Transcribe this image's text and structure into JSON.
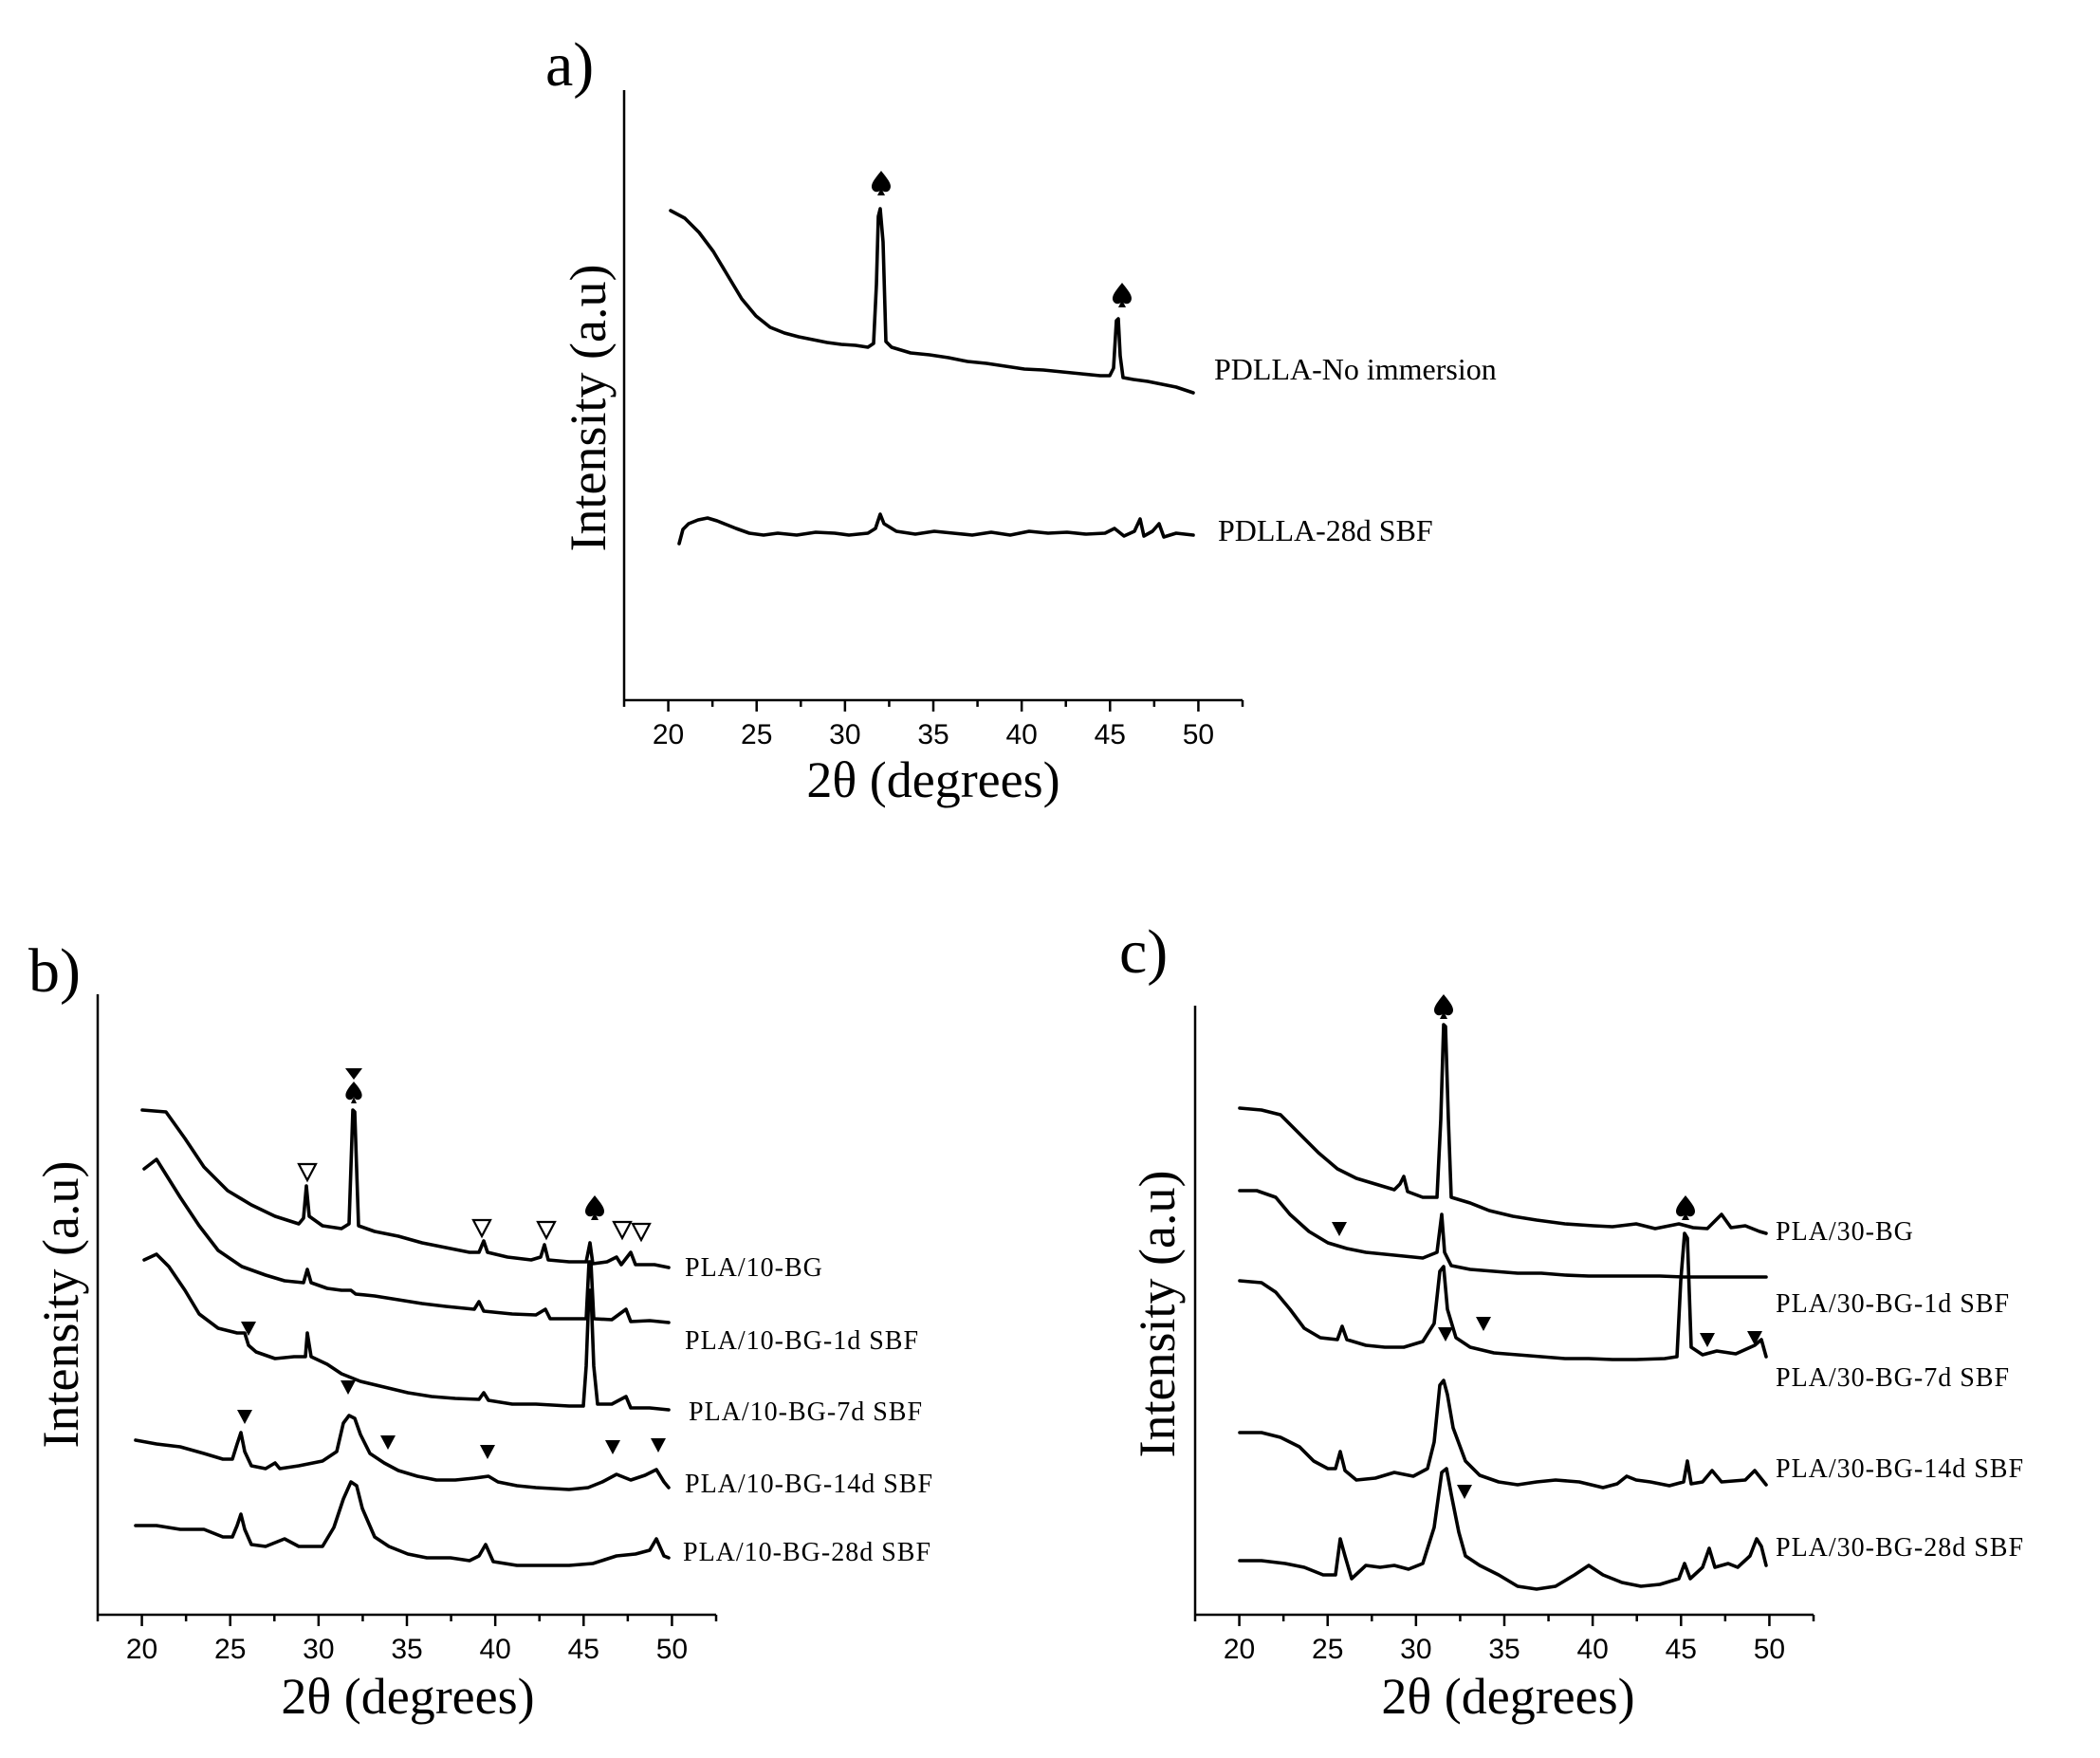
{
  "figure": {
    "x_axis_label": "2θ (degrees)",
    "y_axis_label": "Intensity (a.u)",
    "marker_colors": {
      "filled": "#000000",
      "open": "#ffffff"
    }
  },
  "chart_data": [
    {
      "type": "line",
      "panel": "a)",
      "xlabel": "2θ (degrees)",
      "ylabel": "Intensity (a.u)",
      "xlim": [
        17.5,
        52.5
      ],
      "xticks": [
        20,
        25,
        30,
        35,
        40,
        45,
        50
      ],
      "y_units": "arbitrary (curves stacked with vertical offsets)",
      "series": [
        {
          "name": "PDLLA-No immersion",
          "x_range": [
            20.3,
            49.8
          ],
          "peaks": [
            {
              "x": 31.8,
              "marker": "spade"
            },
            {
              "x": 45.3,
              "marker": "spade"
            }
          ]
        },
        {
          "name": "PDLLA-28d SBF",
          "x_range": [
            20.5,
            49.5
          ],
          "peaks": []
        }
      ]
    },
    {
      "type": "line",
      "panel": "b)",
      "xlabel": "2θ (degrees)",
      "ylabel": "Intensity (a.u)",
      "xlim": [
        17.5,
        52.5
      ],
      "xticks": [
        20,
        25,
        30,
        35,
        40,
        45,
        50
      ],
      "y_units": "arbitrary (curves stacked with vertical offsets)",
      "series": [
        {
          "name": "PLA/10-BG",
          "x_range": [
            20,
            49.5
          ],
          "peaks": [
            {
              "x": 31.8,
              "marker": "hourglass"
            },
            {
              "x": 29.2,
              "marker": "open-triangle"
            },
            {
              "x": 39.2,
              "marker": "open-triangle"
            },
            {
              "x": 42.9,
              "marker": "open-triangle"
            },
            {
              "x": 45.3,
              "marker": "spade"
            },
            {
              "x": 47.3,
              "marker": "open-triangle"
            },
            {
              "x": 48.3,
              "marker": "open-triangle"
            }
          ]
        },
        {
          "name": "PLA/10-BG-1d SBF",
          "x_range": [
            20.3,
            49.5
          ],
          "peaks": []
        },
        {
          "name": "PLA/10-BG-7d SBF",
          "x_range": [
            20,
            49.5
          ],
          "peaks": [
            {
              "x": 25.9,
              "marker": "filled-triangle"
            }
          ]
        },
        {
          "name": "PLA/10-BG-14d SBF",
          "x_range": [
            19.8,
            49.5
          ],
          "peaks": [
            {
              "x": 25.8,
              "marker": "filled-triangle"
            },
            {
              "x": 31.8,
              "marker": "filled-triangle"
            },
            {
              "x": 34.0,
              "marker": "filled-triangle"
            },
            {
              "x": 39.4,
              "marker": "filled-triangle"
            },
            {
              "x": 46.8,
              "marker": "filled-triangle"
            },
            {
              "x": 49.3,
              "marker": "filled-triangle"
            }
          ]
        },
        {
          "name": "PLA/10-BG-28d SBF",
          "x_range": [
            19.8,
            49.5
          ],
          "peaks": []
        }
      ]
    },
    {
      "type": "line",
      "panel": "c)",
      "xlabel": "2θ (degrees)",
      "ylabel": "Intensity (a.u)",
      "xlim": [
        17.5,
        52.5
      ],
      "xticks": [
        20,
        25,
        30,
        35,
        40,
        45,
        50
      ],
      "y_units": "arbitrary (curves stacked with vertical offsets)",
      "series": [
        {
          "name": "PLA/30-BG",
          "x_range": [
            20,
            49.5
          ],
          "peaks": [
            {
              "x": 31.8,
              "marker": "spade"
            },
            {
              "x": 45.3,
              "marker": "spade"
            }
          ]
        },
        {
          "name": "PLA/30-BG-1d SBF",
          "x_range": [
            20,
            49.5
          ],
          "peaks": [
            {
              "x": 25.9,
              "marker": "filled-triangle"
            }
          ]
        },
        {
          "name": "PLA/30-BG-7d SBF",
          "x_range": [
            20,
            49.5
          ],
          "peaks": [
            {
              "x": 31.8,
              "marker": "filled-triangle"
            },
            {
              "x": 34.2,
              "marker": "filled-triangle"
            },
            {
              "x": 46.6,
              "marker": "filled-triangle"
            },
            {
              "x": 49.4,
              "marker": "filled-triangle"
            }
          ]
        },
        {
          "name": "PLA/30-BG-14d SBF",
          "x_range": [
            20,
            49.5
          ],
          "peaks": []
        },
        {
          "name": "PLA/30-BG-28d SBF",
          "x_range": [
            20,
            49.5
          ],
          "peaks": [
            {
              "x": 32.8,
              "marker": "filled-triangle"
            }
          ]
        }
      ]
    }
  ]
}
